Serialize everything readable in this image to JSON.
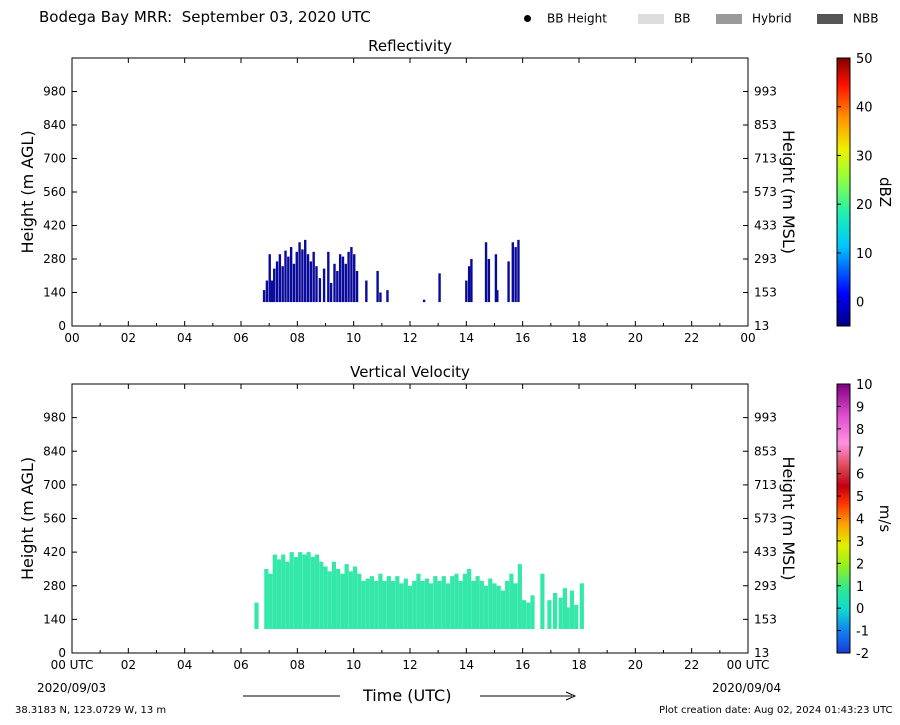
{
  "header": {
    "title": "Bodega Bay MRR:  September 03, 2020 UTC",
    "legend": [
      {
        "label": "BB Height",
        "kind": "dot",
        "color": "#000000"
      },
      {
        "label": "BB",
        "kind": "box",
        "color": "#dcdcdc"
      },
      {
        "label": "Hybrid",
        "kind": "box",
        "color": "#9a9a9a"
      },
      {
        "label": "NBB",
        "kind": "box",
        "color": "#555555"
      }
    ]
  },
  "footer": {
    "coords": "38.3183 N, 123.0729 W, 13 m",
    "created": "Plot creation date: Aug 02, 2024 01:43:23 UTC",
    "date_start": "2020/09/03",
    "date_end": "2020/09/04",
    "xlabel": "Time (UTC)"
  },
  "colors": {
    "reflectivity_fill": "#0a0a9a",
    "velocity_fill": "#33e8a8"
  },
  "chart_data": [
    {
      "type": "heatmap",
      "title": "Reflectivity",
      "ylabel": "Height (m AGL)",
      "ylabel_right": "Height (m MSL)",
      "x_ticks": [
        "00",
        "02",
        "04",
        "06",
        "08",
        "10",
        "12",
        "14",
        "16",
        "18",
        "20",
        "22",
        "00"
      ],
      "xlim": [
        0,
        24
      ],
      "ylim": [
        0,
        1120
      ],
      "y_ticks": [
        0,
        140,
        280,
        420,
        560,
        700,
        840,
        980
      ],
      "y_ticks_right": [
        "13",
        "153",
        "293",
        "433",
        "573",
        "713",
        "853",
        "993"
      ],
      "colorbar": {
        "label": "dBZ",
        "range": [
          -5,
          50
        ],
        "ticks": [
          0,
          10,
          20,
          30,
          40,
          50
        ]
      },
      "columns": [
        {
          "t": 6.82,
          "top": 150
        },
        {
          "t": 6.92,
          "top": 190
        },
        {
          "t": 7.02,
          "top": 300
        },
        {
          "t": 7.1,
          "top": 190
        },
        {
          "t": 7.18,
          "top": 240
        },
        {
          "t": 7.28,
          "top": 270
        },
        {
          "t": 7.38,
          "top": 300
        },
        {
          "t": 7.48,
          "top": 250
        },
        {
          "t": 7.58,
          "top": 315
        },
        {
          "t": 7.68,
          "top": 290
        },
        {
          "t": 7.78,
          "top": 330
        },
        {
          "t": 7.88,
          "top": 260
        },
        {
          "t": 7.98,
          "top": 310
        },
        {
          "t": 8.08,
          "top": 350
        },
        {
          "t": 8.18,
          "top": 320
        },
        {
          "t": 8.28,
          "top": 360
        },
        {
          "t": 8.38,
          "top": 300
        },
        {
          "t": 8.48,
          "top": 270
        },
        {
          "t": 8.58,
          "top": 310
        },
        {
          "t": 8.68,
          "top": 250
        },
        {
          "t": 8.8,
          "top": 200
        },
        {
          "t": 8.95,
          "top": 240
        },
        {
          "t": 9.1,
          "top": 310
        },
        {
          "t": 9.2,
          "top": 180
        },
        {
          "t": 9.32,
          "top": 260
        },
        {
          "t": 9.42,
          "top": 230
        },
        {
          "t": 9.52,
          "top": 300
        },
        {
          "t": 9.62,
          "top": 290
        },
        {
          "t": 9.72,
          "top": 260
        },
        {
          "t": 9.82,
          "top": 310
        },
        {
          "t": 9.92,
          "top": 330
        },
        {
          "t": 10.02,
          "top": 300
        },
        {
          "t": 10.12,
          "top": 230
        },
        {
          "t": 10.45,
          "top": 190
        },
        {
          "t": 10.85,
          "top": 230
        },
        {
          "t": 10.95,
          "top": 140
        },
        {
          "t": 11.2,
          "top": 150
        },
        {
          "t": 12.5,
          "top": 110
        },
        {
          "t": 13.05,
          "top": 220
        },
        {
          "t": 14.0,
          "top": 190
        },
        {
          "t": 14.1,
          "top": 250
        },
        {
          "t": 14.18,
          "top": 280
        },
        {
          "t": 14.7,
          "top": 350
        },
        {
          "t": 14.8,
          "top": 280
        },
        {
          "t": 15.05,
          "top": 300
        },
        {
          "t": 15.1,
          "top": 150
        },
        {
          "t": 15.5,
          "top": 270
        },
        {
          "t": 15.65,
          "top": 350
        },
        {
          "t": 15.75,
          "top": 330
        },
        {
          "t": 15.85,
          "top": 360
        }
      ]
    },
    {
      "type": "heatmap",
      "title": "Vertical Velocity",
      "ylabel": "Height (m AGL)",
      "ylabel_right": "Height (m MSL)",
      "x_ticks": [
        "00 UTC",
        "02",
        "04",
        "06",
        "08",
        "10",
        "12",
        "14",
        "16",
        "18",
        "20",
        "22",
        "00 UTC"
      ],
      "xlim": [
        0,
        24
      ],
      "ylim": [
        0,
        1120
      ],
      "y_ticks": [
        0,
        140,
        280,
        420,
        560,
        700,
        840,
        980
      ],
      "y_ticks_right": [
        "13",
        "153",
        "293",
        "433",
        "573",
        "713",
        "853",
        "993"
      ],
      "colorbar": {
        "label": "m/s",
        "range": [
          -2,
          10
        ],
        "ticks": [
          -2,
          -1,
          0,
          1,
          2,
          3,
          4,
          5,
          6,
          7,
          8,
          9,
          10
        ]
      },
      "columns": [
        {
          "t": 6.55,
          "top": 210
        },
        {
          "t": 6.9,
          "top": 350
        },
        {
          "t": 7.05,
          "top": 330
        },
        {
          "t": 7.2,
          "top": 410
        },
        {
          "t": 7.35,
          "top": 390
        },
        {
          "t": 7.5,
          "top": 410
        },
        {
          "t": 7.65,
          "top": 380
        },
        {
          "t": 7.8,
          "top": 420
        },
        {
          "t": 7.95,
          "top": 400
        },
        {
          "t": 8.1,
          "top": 420
        },
        {
          "t": 8.25,
          "top": 410
        },
        {
          "t": 8.4,
          "top": 420
        },
        {
          "t": 8.55,
          "top": 400
        },
        {
          "t": 8.7,
          "top": 410
        },
        {
          "t": 8.85,
          "top": 380
        },
        {
          "t": 9.0,
          "top": 360
        },
        {
          "t": 9.15,
          "top": 340
        },
        {
          "t": 9.3,
          "top": 380
        },
        {
          "t": 9.45,
          "top": 350
        },
        {
          "t": 9.6,
          "top": 330
        },
        {
          "t": 9.75,
          "top": 370
        },
        {
          "t": 9.9,
          "top": 340
        },
        {
          "t": 10.05,
          "top": 360
        },
        {
          "t": 10.2,
          "top": 330
        },
        {
          "t": 10.35,
          "top": 300
        },
        {
          "t": 10.5,
          "top": 310
        },
        {
          "t": 10.65,
          "top": 320
        },
        {
          "t": 10.8,
          "top": 300
        },
        {
          "t": 10.95,
          "top": 330
        },
        {
          "t": 11.1,
          "top": 300
        },
        {
          "t": 11.25,
          "top": 320
        },
        {
          "t": 11.4,
          "top": 300
        },
        {
          "t": 11.55,
          "top": 320
        },
        {
          "t": 11.7,
          "top": 290
        },
        {
          "t": 11.85,
          "top": 310
        },
        {
          "t": 12.0,
          "top": 280
        },
        {
          "t": 12.15,
          "top": 300
        },
        {
          "t": 12.3,
          "top": 330
        },
        {
          "t": 12.45,
          "top": 300
        },
        {
          "t": 12.6,
          "top": 310
        },
        {
          "t": 12.75,
          "top": 290
        },
        {
          "t": 12.9,
          "top": 320
        },
        {
          "t": 13.05,
          "top": 300
        },
        {
          "t": 13.2,
          "top": 320
        },
        {
          "t": 13.35,
          "top": 290
        },
        {
          "t": 13.5,
          "top": 320
        },
        {
          "t": 13.65,
          "top": 330
        },
        {
          "t": 13.8,
          "top": 300
        },
        {
          "t": 13.95,
          "top": 330
        },
        {
          "t": 14.1,
          "top": 350
        },
        {
          "t": 14.25,
          "top": 300
        },
        {
          "t": 14.4,
          "top": 320
        },
        {
          "t": 14.55,
          "top": 300
        },
        {
          "t": 14.7,
          "top": 280
        },
        {
          "t": 14.85,
          "top": 310
        },
        {
          "t": 15.0,
          "top": 290
        },
        {
          "t": 15.15,
          "top": 280
        },
        {
          "t": 15.3,
          "top": 260
        },
        {
          "t": 15.45,
          "top": 300
        },
        {
          "t": 15.6,
          "top": 330
        },
        {
          "t": 15.75,
          "top": 290
        },
        {
          "t": 15.9,
          "top": 370
        },
        {
          "t": 16.05,
          "top": 220
        },
        {
          "t": 16.2,
          "top": 210
        },
        {
          "t": 16.35,
          "top": 240
        },
        {
          "t": 16.7,
          "top": 330
        },
        {
          "t": 16.95,
          "top": 220
        },
        {
          "t": 17.15,
          "top": 250
        },
        {
          "t": 17.35,
          "top": 230
        },
        {
          "t": 17.5,
          "top": 270
        },
        {
          "t": 17.6,
          "top": 190
        },
        {
          "t": 17.75,
          "top": 260
        },
        {
          "t": 17.9,
          "top": 200
        },
        {
          "t": 18.1,
          "top": 290
        }
      ]
    }
  ]
}
